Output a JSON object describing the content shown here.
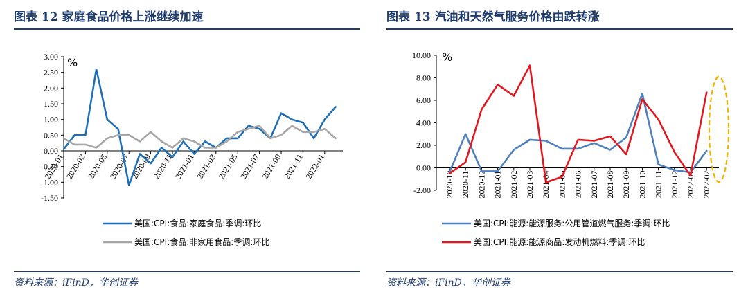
{
  "panels": [
    {
      "title": "图表 12   家庭食品价格上涨继续加速",
      "source": "资料来源：iFinD，华创证券"
    },
    {
      "title": "图表 13   汽油和天然气服务价格由跌转涨",
      "source": "资料来源：iFinD，华创证券"
    }
  ],
  "chart_data": [
    {
      "type": "line",
      "title": "",
      "xlabel": "",
      "ylabel": "%",
      "ylim": [
        -1.5,
        3.0
      ],
      "yticks": [
        -1.5,
        -1.0,
        -0.5,
        0.0,
        0.5,
        1.0,
        1.5,
        2.0,
        2.5,
        3.0
      ],
      "ytick_labels": [
        "-1.50",
        "-1.00",
        "-0.50",
        "0.00",
        "0.50",
        "1.00",
        "1.50",
        "2.00",
        "2.50",
        "3.00"
      ],
      "x": [
        "2020-01",
        "2020-02",
        "2020-03",
        "2020-04",
        "2020-05",
        "2020-06",
        "2020-07",
        "2020-08",
        "2020-09",
        "2020-10",
        "2020-11",
        "2020-12",
        "2021-01",
        "2021-02",
        "2021-03",
        "2021-04",
        "2021-05",
        "2021-06",
        "2021-07",
        "2021-08",
        "2021-09",
        "2021-10",
        "2021-11",
        "2021-12",
        "2022-01",
        "2022-02"
      ],
      "xtick_labels": [
        "2020-01",
        "2020-03",
        "2020-05",
        "2020-07",
        "2020-09",
        "2020-11",
        "2021-01",
        "2021-03",
        "2021-05",
        "2021-07",
        "2021-09",
        "2021-11",
        "2022-01"
      ],
      "grid": false,
      "legend_position": "bottom",
      "series": [
        {
          "name": "美国:CPI:食品:家庭食品:季调:环比",
          "color": "#1f6fb4",
          "values": [
            0.05,
            0.5,
            0.5,
            2.6,
            1.0,
            0.7,
            -1.1,
            -0.1,
            -0.4,
            0.1,
            -0.2,
            0.3,
            -0.1,
            0.3,
            0.1,
            0.4,
            0.4,
            0.8,
            0.7,
            0.4,
            1.2,
            1.0,
            0.9,
            0.4,
            1.0,
            1.4
          ]
        },
        {
          "name": "美国:CPI:食品:非家用食品:季调:环比",
          "color": "#a6a6a6",
          "values": [
            0.4,
            0.2,
            0.2,
            0.1,
            0.4,
            0.5,
            0.5,
            0.3,
            0.6,
            0.3,
            0.1,
            0.4,
            0.3,
            0.1,
            0.1,
            0.3,
            0.6,
            0.7,
            0.8,
            0.4,
            0.5,
            0.8,
            0.6,
            0.6,
            0.7,
            0.4
          ]
        }
      ]
    },
    {
      "type": "line",
      "title": "",
      "xlabel": "",
      "ylabel": "%",
      "ylim": [
        -2.0,
        10.0
      ],
      "yticks": [
        -2,
        0,
        2,
        4,
        6,
        8,
        10
      ],
      "ytick_labels": [
        "-2.00",
        "0.00",
        "2.00",
        "4.00",
        "6.00",
        "8.00",
        "10.00"
      ],
      "x": [
        "2020-10",
        "2020-11",
        "2020-12",
        "2021-01",
        "2021-02",
        "2021-03",
        "2021-04",
        "2021-05",
        "2021-06",
        "2021-07",
        "2021-08",
        "2021-09",
        "2021-10",
        "2021-11",
        "2021-12",
        "2022-01",
        "2022-02"
      ],
      "xtick_labels": [
        "2020-10",
        "2020-11",
        "2020-12",
        "2021-01",
        "2021-02",
        "2021-03",
        "2021-04",
        "2021-05",
        "2021-06",
        "2021-07",
        "2021-08",
        "2021-09",
        "2021-10",
        "2021-11",
        "2021-12",
        "2022-01",
        "2022-02"
      ],
      "grid": false,
      "legend_position": "bottom",
      "highlight_color": "#f2b300",
      "series": [
        {
          "name": "美国:CPI:能源:能源服务:公用管道燃气服务:季调:环比",
          "color": "#4f81bd",
          "values": [
            -0.4,
            3.0,
            -0.3,
            -0.3,
            1.6,
            2.5,
            2.4,
            1.7,
            1.7,
            2.2,
            1.6,
            2.7,
            6.6,
            0.3,
            -0.2,
            -0.4,
            1.5
          ]
        },
        {
          "name": "美国:CPI:能源:能源商品:发动机燃料:季调:环比",
          "color": "#e0181f",
          "values": [
            -0.5,
            0.5,
            5.2,
            7.4,
            6.4,
            9.1,
            -1.3,
            -0.8,
            2.5,
            2.4,
            2.8,
            1.2,
            6.1,
            4.3,
            1.4,
            -0.7,
            6.7
          ]
        }
      ]
    }
  ]
}
